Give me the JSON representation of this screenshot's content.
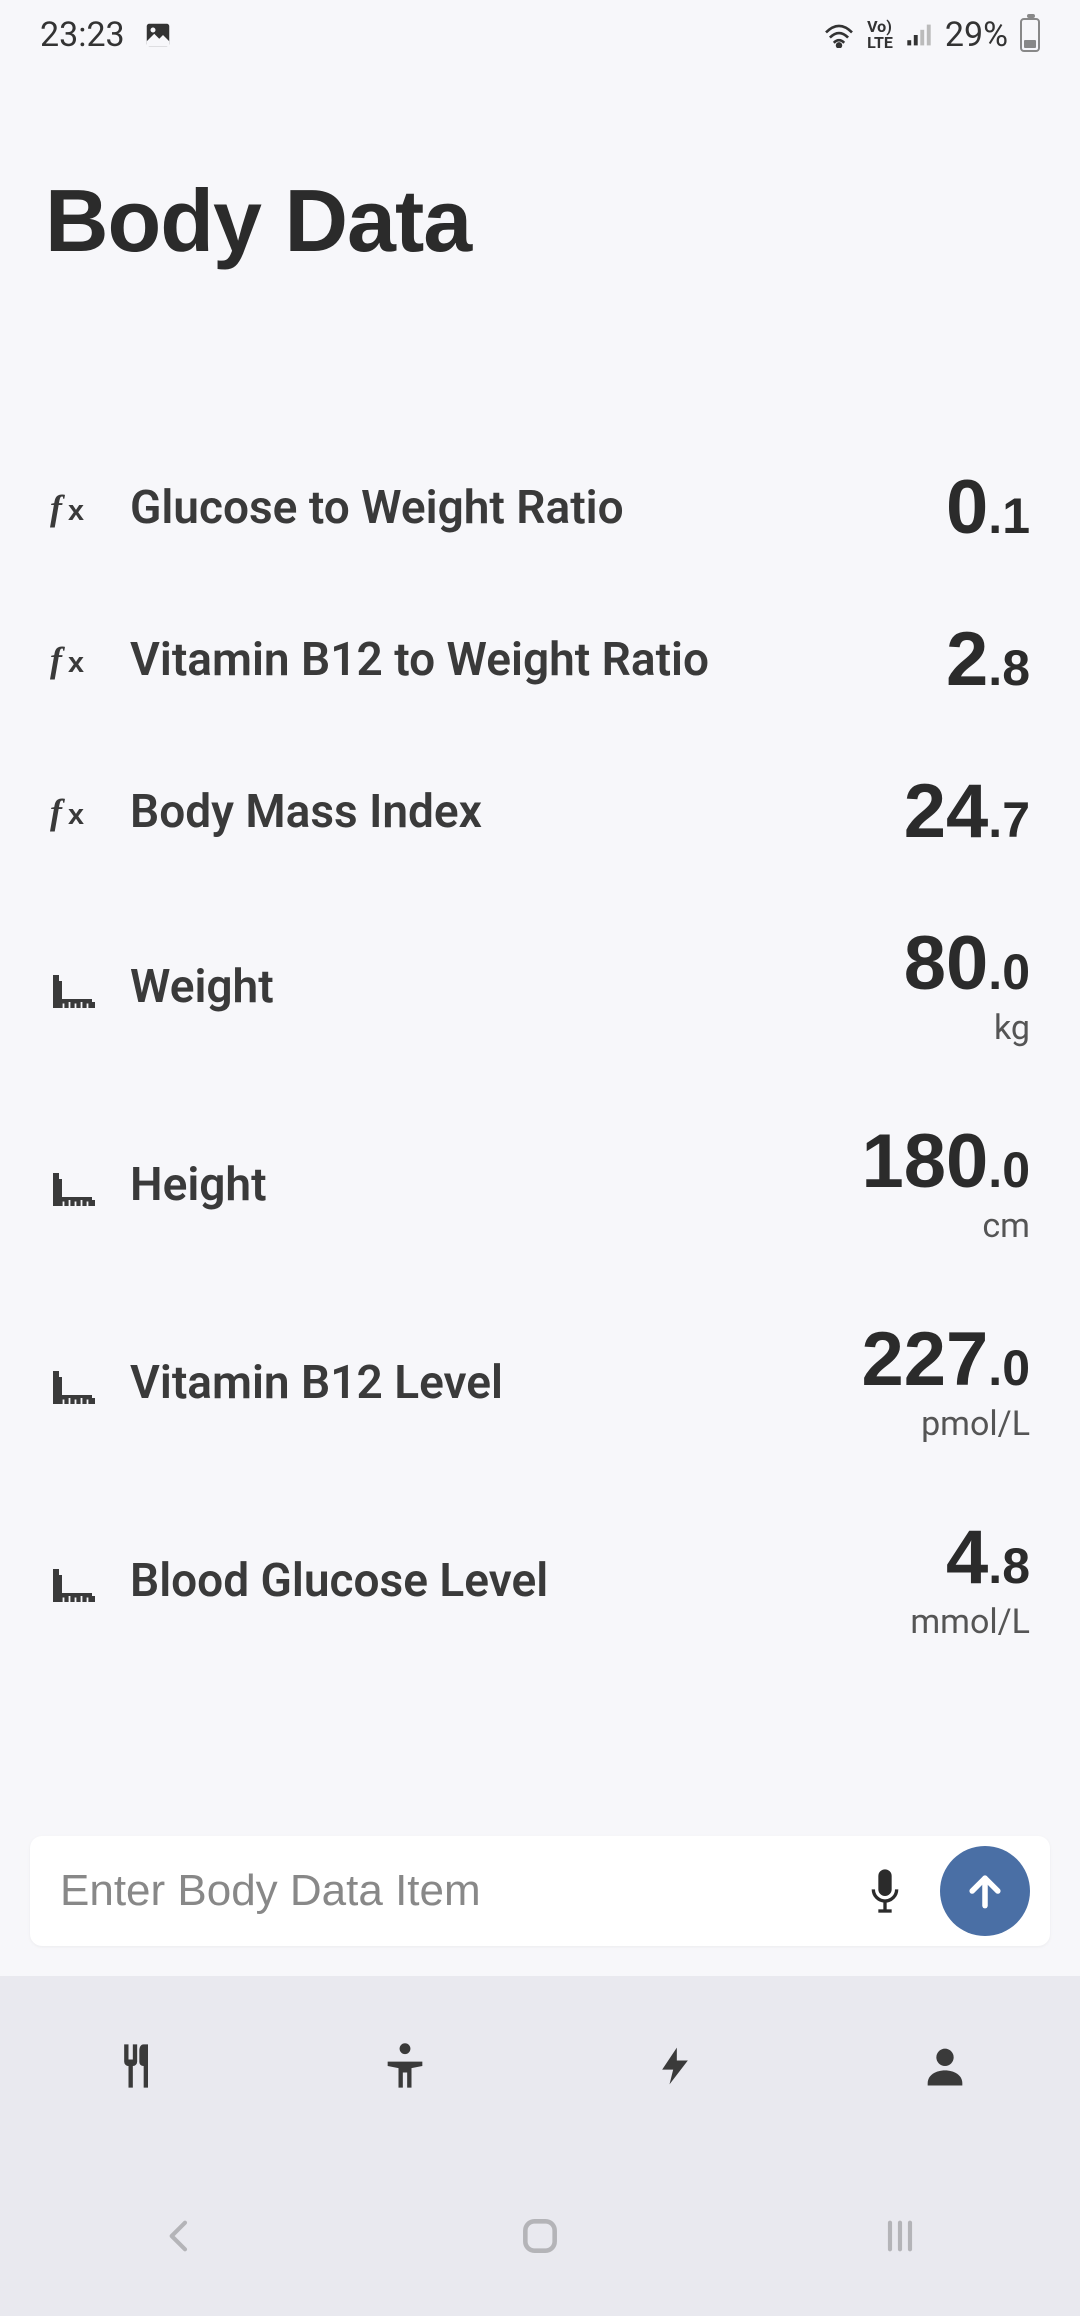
{
  "status_bar": {
    "time": "23:23",
    "battery_percent": "29%"
  },
  "page_title": "Body Data",
  "colors": {
    "background": "#f7f7fa",
    "text_primary": "#2b2b2b",
    "text_secondary": "#555555",
    "icon": "#3a3a3a",
    "input_bg": "#ffffff",
    "accent": "#4a6fa5",
    "tab_bg": "#e9e9ef"
  },
  "metrics": [
    {
      "icon": "fx",
      "label": "Glucose to Weight Ratio",
      "int": "0",
      "dec": ".1",
      "unit": ""
    },
    {
      "icon": "fx",
      "label": "Vitamin B12 to Weight Ratio",
      "int": "2",
      "dec": ".8",
      "unit": ""
    },
    {
      "icon": "fx",
      "label": "Body Mass Index",
      "int": "24",
      "dec": ".7",
      "unit": ""
    },
    {
      "icon": "ruler",
      "label": "Weight",
      "int": "80",
      "dec": ".0",
      "unit": "kg"
    },
    {
      "icon": "ruler",
      "label": "Height",
      "int": "180",
      "dec": ".0",
      "unit": "cm"
    },
    {
      "icon": "ruler",
      "label": "Vitamin B12 Level",
      "int": "227",
      "dec": ".0",
      "unit": "pmol/L"
    },
    {
      "icon": "ruler",
      "label": "Blood Glucose Level",
      "int": "4",
      "dec": ".8",
      "unit": "mmol/L"
    }
  ],
  "input": {
    "placeholder": "Enter Body Data Item"
  },
  "tabs": [
    {
      "icon": "food",
      "name": "food-tab"
    },
    {
      "icon": "body",
      "name": "body-tab"
    },
    {
      "icon": "energy",
      "name": "energy-tab"
    },
    {
      "icon": "profile",
      "name": "profile-tab"
    }
  ]
}
